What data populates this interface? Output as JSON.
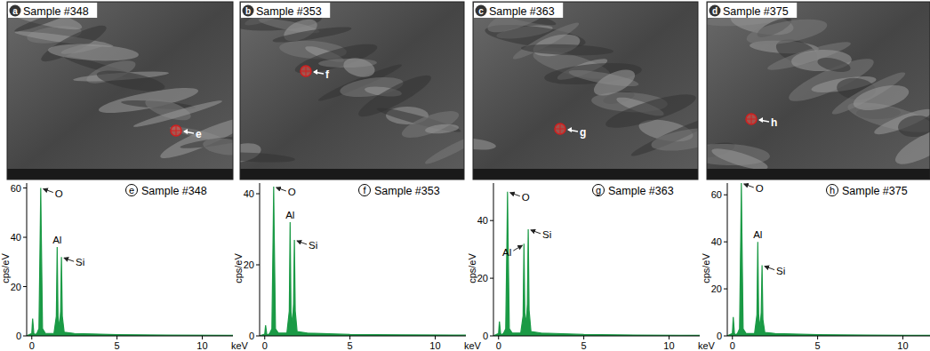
{
  "images": [
    {
      "letter": "a",
      "title": "Sample #348",
      "spot": "e"
    },
    {
      "letter": "b",
      "title": "Sample #353",
      "spot": "f"
    },
    {
      "letter": "c",
      "title": "Sample #363",
      "spot": "g"
    },
    {
      "letter": "d",
      "title": "Sample #375",
      "spot": "h"
    }
  ],
  "chart_data": [
    {
      "type": "line",
      "panel_label": "e",
      "title": "Sample #348",
      "x_label": "keV",
      "y_label": "cps/eV",
      "color": "#1a9a45",
      "xlim": [
        -0.3,
        11.8
      ],
      "xticks": [
        0,
        5,
        10
      ],
      "ylim": [
        0,
        62
      ],
      "yticks": [
        0,
        20,
        40,
        60
      ],
      "series": [
        {
          "name": "Sample #348",
          "x": [
            -0.3,
            0.0,
            0.05,
            0.12,
            0.2,
            0.3,
            0.42,
            0.5,
            0.525,
            0.55,
            0.63,
            0.8,
            1.3,
            1.44,
            1.49,
            1.54,
            1.62,
            1.69,
            1.74,
            1.79,
            1.9,
            2.5,
            5,
            8,
            11.8
          ],
          "values": [
            0,
            1,
            7,
            1,
            0.5,
            1,
            3,
            45,
            60,
            45,
            3,
            1,
            1,
            8,
            36,
            8,
            3,
            10,
            32,
            8,
            1.5,
            1,
            0.5,
            0.3,
            0.2
          ]
        }
      ],
      "annotations": [
        {
          "text": "O",
          "x": 0.525,
          "y": 60
        },
        {
          "text": "Al",
          "x": 1.49,
          "y": 36
        },
        {
          "text": "Si",
          "x": 1.74,
          "y": 32
        }
      ]
    },
    {
      "type": "line",
      "panel_label": "f",
      "title": "Sample #353",
      "x_label": "keV",
      "y_label": "cps/eV",
      "color": "#1a9a45",
      "xlim": [
        -0.3,
        11.8
      ],
      "xticks": [
        0,
        5,
        10
      ],
      "ylim": [
        0,
        43
      ],
      "yticks": [
        0,
        20,
        40
      ],
      "series": [
        {
          "name": "Sample #353",
          "x": [
            -0.3,
            0.0,
            0.05,
            0.12,
            0.2,
            0.3,
            0.42,
            0.5,
            0.525,
            0.55,
            0.63,
            0.8,
            1.3,
            1.44,
            1.49,
            1.54,
            1.62,
            1.69,
            1.74,
            1.79,
            1.9,
            2.5,
            5,
            8,
            11.8
          ],
          "values": [
            0,
            0.5,
            3,
            0.5,
            0.3,
            0.8,
            2,
            31,
            42,
            31,
            2,
            0.8,
            0.8,
            7,
            32,
            7,
            3,
            9,
            27,
            7,
            1.2,
            0.8,
            0.4,
            0.3,
            0.2
          ]
        }
      ],
      "annotations": [
        {
          "text": "O",
          "x": 0.525,
          "y": 42
        },
        {
          "text": "Al",
          "x": 1.49,
          "y": 32
        },
        {
          "text": "Si",
          "x": 1.74,
          "y": 27
        }
      ]
    },
    {
      "type": "line",
      "panel_label": "g",
      "title": "Sample #363",
      "x_label": "keV",
      "y_label": "cps/eV",
      "color": "#1a9a45",
      "xlim": [
        -0.3,
        11.8
      ],
      "xticks": [
        0,
        5,
        10
      ],
      "ylim": [
        0,
        53
      ],
      "yticks": [
        0,
        20,
        40
      ],
      "series": [
        {
          "name": "Sample #363",
          "x": [
            -0.3,
            0.0,
            0.05,
            0.12,
            0.2,
            0.3,
            0.42,
            0.5,
            0.525,
            0.55,
            0.63,
            0.8,
            1.3,
            1.44,
            1.49,
            1.54,
            1.62,
            1.69,
            1.74,
            1.79,
            1.9,
            2.5,
            5,
            8,
            11.8
          ],
          "values": [
            0,
            0.8,
            5,
            0.8,
            0.4,
            1,
            2.5,
            37,
            50,
            37,
            2.5,
            1,
            1,
            7,
            32,
            8,
            4,
            11,
            37,
            9,
            1.5,
            1,
            0.5,
            0.3,
            0.2
          ]
        }
      ],
      "annotations": [
        {
          "text": "O",
          "x": 0.525,
          "y": 50
        },
        {
          "text": "Al",
          "x": 1.49,
          "y": 32
        },
        {
          "text": "Si",
          "x": 1.74,
          "y": 37
        }
      ]
    },
    {
      "type": "line",
      "panel_label": "h",
      "title": "Sample #375",
      "x_label": "keV",
      "y_label": "cps/eV",
      "color": "#1a9a45",
      "xlim": [
        -0.3,
        11.8
      ],
      "xticks": [
        0,
        5,
        10
      ],
      "ylim": [
        0,
        65
      ],
      "yticks": [
        0,
        20,
        40,
        60
      ],
      "series": [
        {
          "name": "Sample #375",
          "x": [
            -0.3,
            0.0,
            0.05,
            0.12,
            0.2,
            0.3,
            0.42,
            0.5,
            0.525,
            0.55,
            0.63,
            0.8,
            1.3,
            1.44,
            1.49,
            1.54,
            1.62,
            1.69,
            1.74,
            1.79,
            1.9,
            2.5,
            5,
            8,
            11.8
          ],
          "values": [
            0,
            1,
            8,
            1,
            0.5,
            1,
            3,
            48,
            65,
            48,
            3,
            1,
            1,
            9,
            40,
            9,
            3,
            10,
            30,
            7,
            1.5,
            1,
            0.5,
            0.3,
            0.2
          ]
        }
      ],
      "annotations": [
        {
          "text": "O",
          "x": 0.525,
          "y": 65
        },
        {
          "text": "Al",
          "x": 1.49,
          "y": 40
        },
        {
          "text": "Si",
          "x": 1.74,
          "y": 30
        }
      ]
    }
  ]
}
